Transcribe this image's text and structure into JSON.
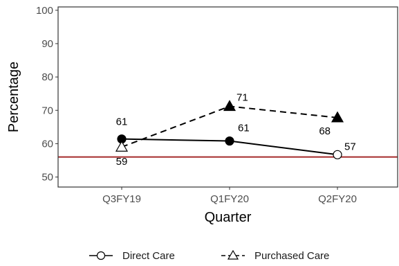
{
  "chart_data": {
    "type": "line",
    "categories": [
      "Q3FY19",
      "Q1FY20",
      "Q2FY20"
    ],
    "xlabel": "Quarter",
    "ylabel": "Percentage",
    "ylim": [
      47,
      101
    ],
    "yticks": [
      50,
      60,
      70,
      80,
      90,
      100
    ],
    "reference_line": {
      "value": 56,
      "color": "#a52a2a"
    },
    "series": [
      {
        "name": "Direct Care",
        "values": [
          61.4,
          60.8,
          56.7
        ],
        "labels": [
          "61",
          "61",
          "57"
        ],
        "line_style": "solid",
        "marker_styles": [
          "filled-circle",
          "filled-circle",
          "open-circle"
        ]
      },
      {
        "name": "Purchased Care",
        "values": [
          59.0,
          71.2,
          67.8
        ],
        "labels": [
          "59",
          "71",
          "68"
        ],
        "line_style": "dashed",
        "marker_styles": [
          "open-triangle",
          "filled-triangle",
          "filled-triangle"
        ]
      }
    ],
    "legend_position": "bottom",
    "grid": false
  }
}
